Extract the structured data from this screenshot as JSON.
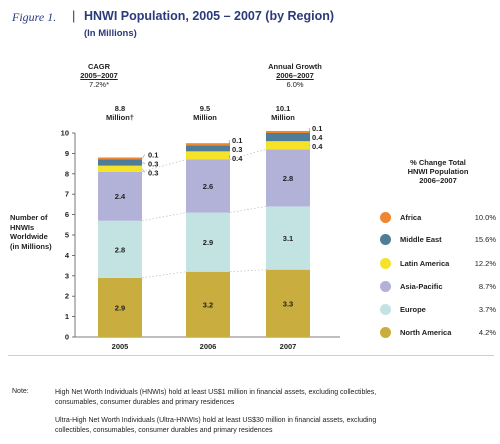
{
  "figure": {
    "label": "Figure 1.",
    "separator": "|",
    "title": "HNWI Population, 2005 – 2007 (by Region)",
    "subtitle": "(In Millions)"
  },
  "cagr": {
    "label": "CAGR",
    "period": "2005–2007",
    "value": "7.2%*"
  },
  "growth": {
    "label": "Annual Growth",
    "period": "2006–2007",
    "value": "6.0%"
  },
  "totals": [
    {
      "value": "8.8",
      "unit": "Million†"
    },
    {
      "value": "9.5",
      "unit": "Million"
    },
    {
      "value": "10.1",
      "unit": "Million"
    }
  ],
  "y_axis_label": [
    "Number of",
    "HNWIs",
    "Worldwide",
    "(in Millions)"
  ],
  "legend": {
    "title": [
      "% Change Total",
      "HNWI Population",
      "2006–2007"
    ],
    "items": [
      {
        "name": "Africa",
        "change": "10.0%",
        "color": "#f0862e"
      },
      {
        "name": "Middle East",
        "change": "15.6%",
        "color": "#4f7d97"
      },
      {
        "name": "Latin America",
        "change": "12.2%",
        "color": "#f7e22a"
      },
      {
        "name": "Asia-Pacific",
        "change": "8.7%",
        "color": "#b2b2d8"
      },
      {
        "name": "Europe",
        "change": "3.7%",
        "color": "#c3e3e3"
      },
      {
        "name": "North America",
        "change": "4.2%",
        "color": "#c9ad3e"
      }
    ]
  },
  "chart_data": {
    "type": "bar",
    "stacked": true,
    "categories": [
      "2005",
      "2006",
      "2007"
    ],
    "ylim": [
      0,
      10
    ],
    "yticks": [
      "0",
      "1",
      "2",
      "3",
      "4",
      "5",
      "6",
      "7",
      "8",
      "9",
      "10"
    ],
    "ylabel": "Number of HNWIs Worldwide (in Millions)",
    "series": [
      {
        "name": "North America",
        "color": "#c9ad3e",
        "values": [
          2.9,
          3.2,
          3.3
        ],
        "labels": [
          "2.9",
          "3.2",
          "3.3"
        ]
      },
      {
        "name": "Europe",
        "color": "#c3e3e3",
        "values": [
          2.8,
          2.9,
          3.1
        ],
        "labels": [
          "2.8",
          "2.9",
          "3.1"
        ]
      },
      {
        "name": "Asia-Pacific",
        "color": "#b2b2d8",
        "values": [
          2.4,
          2.6,
          2.8
        ],
        "labels": [
          "2.4",
          "2.6",
          "2.8"
        ]
      },
      {
        "name": "Latin America",
        "color": "#f7e22a",
        "values": [
          0.3,
          0.4,
          0.4
        ],
        "labels": [
          "0.3",
          "0.4",
          "0.4"
        ]
      },
      {
        "name": "Middle East",
        "color": "#4f7d97",
        "values": [
          0.3,
          0.3,
          0.4
        ],
        "labels": [
          "0.3",
          "0.3",
          "0.4"
        ]
      },
      {
        "name": "Africa",
        "color": "#f0862e",
        "values": [
          0.1,
          0.1,
          0.1
        ],
        "labels": [
          "0.1",
          "0.1",
          "0.1"
        ]
      }
    ]
  },
  "notes": {
    "label": "Note:",
    "lines": [
      "High Net Worth Individuals (HNWIs) hold at least US$1 million in financial assets, excluding collectibles,",
      "consumables, consumer durables and primary residences",
      "Ultra-High Net Worth Individuals (Ultra-HNWIs) hold at least US$30 million in financial assets, excluding",
      "collectibles, consumables, consumer durables and primary residences"
    ]
  }
}
